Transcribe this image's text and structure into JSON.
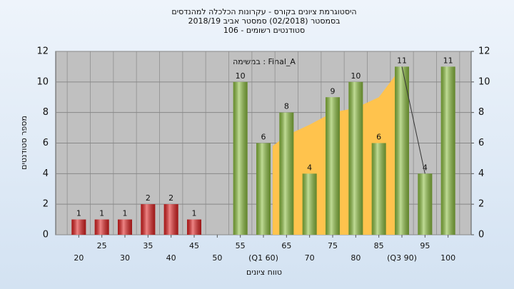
{
  "chart_data": {
    "type": "bar",
    "title": [
      "היסטוגרמת ציונים בקורס - עקרונות הכלכלה למהנדסים",
      "בסמסטר  (02/2018)  סמסטר אביב 2018/19",
      "סטודנטים רשומים - 106"
    ],
    "annotation": "במשימה : Final_A",
    "xlabel": "טווח ציונים",
    "ylabel": "מספר סטודנטים",
    "categories": [
      "20",
      "25",
      "30",
      "35",
      "40",
      "45",
      "50",
      "55",
      "(Q1 60)",
      "65",
      "70",
      "75",
      "80",
      "85",
      "(Q3 90)",
      "95",
      "100"
    ],
    "values": [
      1,
      1,
      1,
      2,
      2,
      1,
      0,
      10,
      6,
      8,
      4,
      9,
      10,
      6,
      11,
      4,
      11
    ],
    "colors": [
      "#e02020",
      "#e02020",
      "#e02020",
      "#e02020",
      "#e02020",
      "#e02020",
      "#e02020",
      "#8cbf3f",
      "#8cbf3f",
      "#8cbf3f",
      "#8cbf3f",
      "#8cbf3f",
      "#8cbf3f",
      "#8cbf3f",
      "#8cbf3f",
      "#8cbf3f",
      "#8cbf3f"
    ],
    "area": {
      "x": [
        62,
        65,
        70,
        75,
        80,
        85,
        90
      ],
      "values": [
        5.8,
        6.5,
        7.2,
        8,
        8.3,
        9,
        11
      ],
      "color": "#ffc34d"
    },
    "line": {
      "x": [
        90,
        95
      ],
      "values": [
        11,
        4
      ],
      "color": "#333333"
    },
    "ylim": [
      0,
      12
    ],
    "yticks": [
      0,
      2,
      4,
      6,
      8,
      10,
      12
    ],
    "y2lim": [
      0,
      12
    ],
    "y2ticks": [
      0,
      2,
      4,
      6,
      8,
      10,
      12
    ],
    "grid": true
  }
}
